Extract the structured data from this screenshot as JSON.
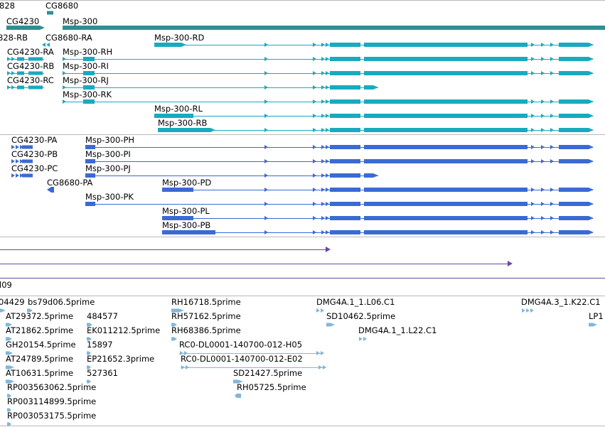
{
  "colors": {
    "gene": "#2f8f8f",
    "cdna_transcript": "#19aabf",
    "protein_transcript": "#3a6ad4",
    "insertion": "#6a4a9e",
    "est": "#7fb6dc",
    "separator": "#b9b9b9"
  },
  "tracks": {
    "genes": [
      {
        "label": "828"
      },
      {
        "label": "CG8680"
      },
      {
        "label": "CG4230"
      },
      {
        "label": "Msp-300"
      }
    ],
    "rna_transcripts": [
      {
        "label": "828-RB"
      },
      {
        "label": "CG8680-RA"
      },
      {
        "label": "Msp-300-RD"
      },
      {
        "label": "CG4230-RA"
      },
      {
        "label": "Msp-300-RH"
      },
      {
        "label": "CG4230-RB"
      },
      {
        "label": "Msp-300-RI"
      },
      {
        "label": "CG4230-RC"
      },
      {
        "label": "Msp-300-RJ"
      },
      {
        "label": "Msp-300-RK"
      },
      {
        "label": "Msp-300-RL"
      },
      {
        "label": "Msp-300-RB"
      }
    ],
    "protein_transcripts": [
      {
        "label": "CG4230-PA"
      },
      {
        "label": "Msp-300-PH"
      },
      {
        "label": "CG4230-PB"
      },
      {
        "label": "Msp-300-PI"
      },
      {
        "label": "CG4230-PC"
      },
      {
        "label": "Msp-300-PJ"
      },
      {
        "label": "CG8680-PA"
      },
      {
        "label": "Msp-300-PD"
      },
      {
        "label": "Msp-300-PK"
      },
      {
        "label": "Msp-300-PL"
      },
      {
        "label": "Msp-300-PB"
      }
    ],
    "insertions": [
      {
        "label": "l09"
      }
    ],
    "ests": [
      {
        "label": "04429"
      },
      {
        "label": "bs79d06.5prime"
      },
      {
        "label": "RH16718.5prime"
      },
      {
        "label": "DMG4A.1_1.L06.C1"
      },
      {
        "label": "DMG4A.3_1.K22.C1"
      },
      {
        "label": "AT29372.5prime"
      },
      {
        "label": "484577"
      },
      {
        "label": "RH57162.5prime"
      },
      {
        "label": "SD10462.5prime"
      },
      {
        "label": "LP1"
      },
      {
        "label": "AT21862.5prime"
      },
      {
        "label": "EK011212.5prime"
      },
      {
        "label": "RH68386.5prime"
      },
      {
        "label": "DMG4A.1_1.L22.C1"
      },
      {
        "label": "GH20154.5prime"
      },
      {
        "label": "15897"
      },
      {
        "label": "RC0-DL0001-140700-012-H05"
      },
      {
        "label": "AT24789.5prime"
      },
      {
        "label": "EP21652.3prime"
      },
      {
        "label": "RC0-DL0001-140700-012-E02"
      },
      {
        "label": "AT10631.5prime"
      },
      {
        "label": "527361"
      },
      {
        "label": "SD21427.5prime"
      },
      {
        "label": "RP003563062.5prime"
      },
      {
        "label": "RH05725.5prime"
      },
      {
        "label": "RP003114899.5prime"
      },
      {
        "label": "RP003053175.5prime"
      }
    ]
  }
}
